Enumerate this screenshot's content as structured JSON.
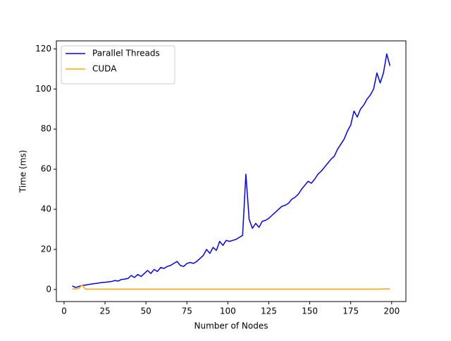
{
  "chart_data": {
    "type": "line",
    "xlabel": "Number of Nodes",
    "ylabel": "Time (ms)",
    "x": [
      5,
      7,
      9,
      11,
      13,
      15,
      17,
      19,
      21,
      23,
      25,
      27,
      29,
      31,
      33,
      35,
      37,
      39,
      41,
      43,
      45,
      47,
      49,
      51,
      53,
      55,
      57,
      59,
      61,
      63,
      65,
      67,
      69,
      71,
      73,
      75,
      77,
      79,
      81,
      83,
      85,
      87,
      89,
      91,
      93,
      95,
      97,
      99,
      101,
      103,
      105,
      107,
      109,
      111,
      113,
      115,
      117,
      119,
      121,
      123,
      125,
      127,
      129,
      131,
      133,
      135,
      137,
      139,
      141,
      143,
      145,
      147,
      149,
      151,
      153,
      155,
      157,
      159,
      161,
      163,
      165,
      167,
      169,
      171,
      173,
      175,
      177,
      179,
      181,
      183,
      185,
      187,
      189,
      191,
      193,
      195,
      197,
      199
    ],
    "series": [
      {
        "name": "Parallel Threads",
        "color": "#0000ff",
        "values": [
          1.8,
          1.0,
          1.5,
          2.0,
          2.2,
          2.5,
          2.8,
          3.0,
          3.2,
          3.5,
          3.6,
          3.8,
          4.0,
          4.5,
          4.2,
          5.0,
          5.2,
          5.5,
          7.0,
          6.0,
          7.5,
          6.5,
          8.0,
          9.5,
          8.0,
          10.0,
          9.0,
          11.0,
          10.5,
          11.5,
          12.0,
          13.0,
          14.0,
          12.0,
          11.5,
          13.0,
          13.5,
          13.0,
          14.0,
          15.5,
          17.0,
          20.0,
          18.0,
          21.0,
          19.5,
          24.0,
          22.0,
          24.5,
          24.0,
          24.5,
          25.0,
          26.0,
          27.0,
          57.5,
          35.0,
          30.5,
          33.0,
          31.0,
          34.0,
          34.5,
          35.5,
          37.0,
          38.5,
          40.0,
          41.5,
          42.0,
          43.0,
          45.0,
          46.0,
          47.5,
          50.0,
          52.0,
          54.0,
          53.0,
          55.0,
          57.5,
          59.0,
          61.0,
          63.0,
          65.0,
          66.5,
          70.0,
          72.5,
          75.0,
          79.0,
          82.0,
          89.0,
          86.0,
          90.0,
          92.0,
          95.0,
          97.0,
          100.0,
          108.0,
          103.0,
          108.0,
          117.5,
          111.5
        ]
      },
      {
        "name": "CUDA",
        "color": "#ffa500",
        "values": [
          0.3,
          0.3,
          0.5,
          2.3,
          0.2,
          0.2,
          0.2,
          0.2,
          0.2,
          0.2,
          0.2,
          0.2,
          0.2,
          0.2,
          0.2,
          0.2,
          0.2,
          0.2,
          0.2,
          0.2,
          0.2,
          0.2,
          0.2,
          0.2,
          0.2,
          0.2,
          0.2,
          0.2,
          0.2,
          0.2,
          0.2,
          0.2,
          0.2,
          0.2,
          0.2,
          0.2,
          0.2,
          0.2,
          0.2,
          0.2,
          0.2,
          0.2,
          0.2,
          0.2,
          0.2,
          0.2,
          0.2,
          0.2,
          0.2,
          0.2,
          0.2,
          0.2,
          0.2,
          0.2,
          0.2,
          0.2,
          0.2,
          0.2,
          0.2,
          0.2,
          0.2,
          0.2,
          0.2,
          0.2,
          0.2,
          0.2,
          0.2,
          0.2,
          0.2,
          0.2,
          0.2,
          0.2,
          0.2,
          0.2,
          0.2,
          0.2,
          0.2,
          0.2,
          0.2,
          0.2,
          0.2,
          0.2,
          0.2,
          0.2,
          0.2,
          0.2,
          0.2,
          0.2,
          0.2,
          0.2,
          0.2,
          0.2,
          0.2,
          0.2,
          0.2,
          0.3,
          0.3,
          0.3
        ]
      }
    ],
    "xlim": [
      -4.7,
      208.7
    ],
    "xticks": [
      0,
      25,
      50,
      75,
      100,
      125,
      150,
      175,
      200
    ],
    "ylim": [
      -6,
      124
    ],
    "yticks": [
      0,
      20,
      40,
      60,
      80,
      100,
      120
    ],
    "legend": "upper left"
  }
}
